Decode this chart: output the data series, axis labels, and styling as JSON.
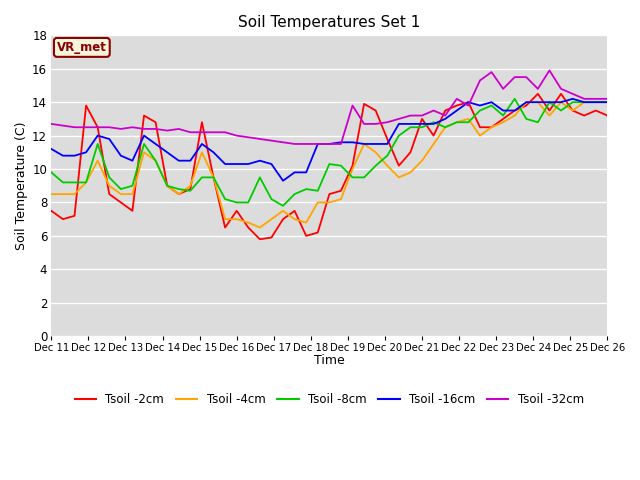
{
  "title": "Soil Temperatures Set 1",
  "xlabel": "Time",
  "ylabel": "Soil Temperature (C)",
  "ylim": [
    0,
    18
  ],
  "yticks": [
    0,
    2,
    4,
    6,
    8,
    10,
    12,
    14,
    16,
    18
  ],
  "annotation_text": "VR_met",
  "annotation_color": "#8b0000",
  "annotation_bg": "#f5f5dc",
  "series_colors": {
    "Tsoil -2cm": "#ff0000",
    "Tsoil -4cm": "#ffa500",
    "Tsoil -8cm": "#00cc00",
    "Tsoil -16cm": "#0000ff",
    "Tsoil -32cm": "#cc00cc"
  },
  "x_labels": [
    "Dec 11",
    "Dec 12",
    "Dec 13",
    "Dec 14",
    "Dec 15",
    "Dec 16",
    "Dec 17",
    "Dec 18",
    "Dec 19",
    "Dec 20",
    "Dec 21",
    "Dec 22",
    "Dec 23",
    "Dec 24",
    "Dec 25",
    "Dec 26"
  ],
  "tsoil_2cm": [
    7.5,
    7.0,
    7.2,
    13.8,
    12.5,
    8.5,
    8.0,
    7.5,
    13.2,
    12.8,
    9.0,
    8.5,
    8.8,
    12.8,
    9.5,
    6.5,
    7.5,
    6.5,
    5.8,
    5.9,
    7.0,
    7.5,
    6.0,
    6.2,
    8.5,
    8.7,
    10.2,
    13.9,
    13.5,
    11.8,
    10.2,
    11.0,
    13.0,
    12.0,
    13.5,
    13.8,
    14.0,
    12.5,
    12.5,
    13.0,
    13.5,
    13.8,
    14.5,
    13.5,
    14.5,
    13.5,
    13.2,
    13.5,
    13.2
  ],
  "tsoil_4cm": [
    8.5,
    8.5,
    8.5,
    9.2,
    10.5,
    9.0,
    8.5,
    8.5,
    11.0,
    10.5,
    9.0,
    8.5,
    9.0,
    11.0,
    9.5,
    7.0,
    7.0,
    6.8,
    6.5,
    7.0,
    7.5,
    7.0,
    6.8,
    8.0,
    8.0,
    8.2,
    10.0,
    11.5,
    11.0,
    10.2,
    9.5,
    9.8,
    10.5,
    11.5,
    12.5,
    12.8,
    13.0,
    12.0,
    12.5,
    12.8,
    13.2,
    14.0,
    14.0,
    13.2,
    14.0,
    13.5,
    14.0,
    14.0,
    14.0
  ],
  "tsoil_8cm": [
    9.8,
    9.2,
    9.2,
    9.2,
    11.5,
    9.5,
    8.8,
    9.0,
    11.5,
    10.5,
    9.0,
    8.8,
    8.7,
    9.5,
    9.5,
    8.2,
    8.0,
    8.0,
    9.5,
    8.2,
    7.8,
    8.5,
    8.8,
    8.7,
    10.3,
    10.2,
    9.5,
    9.5,
    10.2,
    10.8,
    12.0,
    12.5,
    12.5,
    12.8,
    12.5,
    12.8,
    12.8,
    13.5,
    13.8,
    13.2,
    14.2,
    13.0,
    12.8,
    14.0,
    13.5,
    14.0,
    14.0,
    14.0,
    14.0
  ],
  "tsoil_16cm": [
    11.2,
    10.8,
    10.8,
    11.0,
    12.0,
    11.8,
    10.8,
    10.5,
    12.0,
    11.5,
    11.0,
    10.5,
    10.5,
    11.5,
    11.0,
    10.3,
    10.3,
    10.3,
    10.5,
    10.3,
    9.3,
    9.8,
    9.8,
    11.5,
    11.5,
    11.6,
    11.6,
    11.5,
    11.5,
    11.5,
    12.7,
    12.7,
    12.7,
    12.7,
    13.0,
    13.5,
    14.0,
    13.8,
    14.0,
    13.5,
    13.5,
    14.0,
    14.0,
    14.0,
    14.0,
    14.2,
    14.0,
    14.0,
    14.0
  ],
  "tsoil_32cm": [
    12.7,
    12.6,
    12.5,
    12.5,
    12.5,
    12.5,
    12.4,
    12.5,
    12.4,
    12.4,
    12.3,
    12.4,
    12.2,
    12.2,
    12.2,
    12.2,
    12.0,
    11.9,
    11.8,
    11.7,
    11.6,
    11.5,
    11.5,
    11.5,
    11.5,
    11.5,
    13.8,
    12.7,
    12.7,
    12.8,
    13.0,
    13.2,
    13.2,
    13.5,
    13.2,
    14.2,
    13.8,
    15.3,
    15.8,
    14.8,
    15.5,
    15.5,
    14.8,
    15.9,
    14.8,
    14.5,
    14.2,
    14.2,
    14.2
  ]
}
